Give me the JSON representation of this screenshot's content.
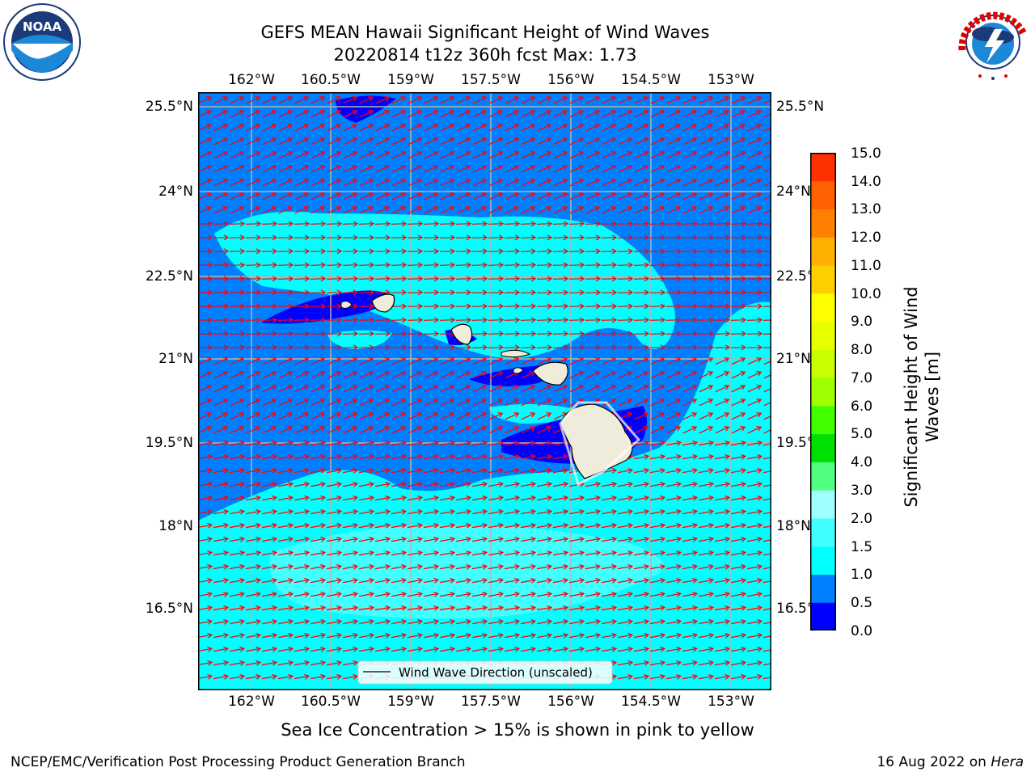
{
  "title": {
    "line1": "GEFS MEAN Hawaii Significant Height of Wind Waves",
    "line2": "20220814 t12z 360h fcst   Max: 1.73"
  },
  "logos": {
    "left": {
      "name": "noaa-logo",
      "text": "NOAA"
    },
    "right": {
      "name": "nws-logo",
      "text": "NATIONAL WEATHER SERVICE"
    }
  },
  "map": {
    "lon_ticks": [
      "162°W",
      "160.5°W",
      "159°W",
      "157.5°W",
      "156°W",
      "154.5°W",
      "153°W"
    ],
    "lat_ticks": [
      "25.5°N",
      "24°N",
      "22.5°N",
      "21°N",
      "19.5°N",
      "18°N",
      "16.5°N"
    ],
    "legend_label": "Wind Wave Direction (unscaled)",
    "arrow_color": "#ff0000",
    "grid_color": "#b4b4b4",
    "land_color": "#f0ecdc"
  },
  "colorbar": {
    "title_line1": "Significant Height of Wind",
    "title_line2": "Waves [m]",
    "ticks": [
      "15.0",
      "14.0",
      "13.0",
      "12.0",
      "11.0",
      "10.0",
      "9.0",
      "8.0",
      "7.0",
      "6.0",
      "5.0",
      "4.0",
      "3.0",
      "2.0",
      "1.5",
      "1.0",
      "0.5",
      "0.0"
    ],
    "colors": [
      "#0000ff",
      "#0080ff",
      "#00ffff",
      "#40ffff",
      "#a0ffff",
      "#50ff80",
      "#00e000",
      "#40ff00",
      "#a0ff00",
      "#c8ff00",
      "#e8ff00",
      "#ffff00",
      "#ffd000",
      "#ffb000",
      "#ff8000",
      "#ff6000",
      "#ff3000"
    ]
  },
  "caption": "Sea Ice Concentration > 15% is shown in pink to yellow",
  "footer": {
    "left": "NCEP/EMC/Verification Post Processing Product Generation Branch",
    "right_date": "16 Aug 2022 on",
    "right_host": "Hera"
  }
}
